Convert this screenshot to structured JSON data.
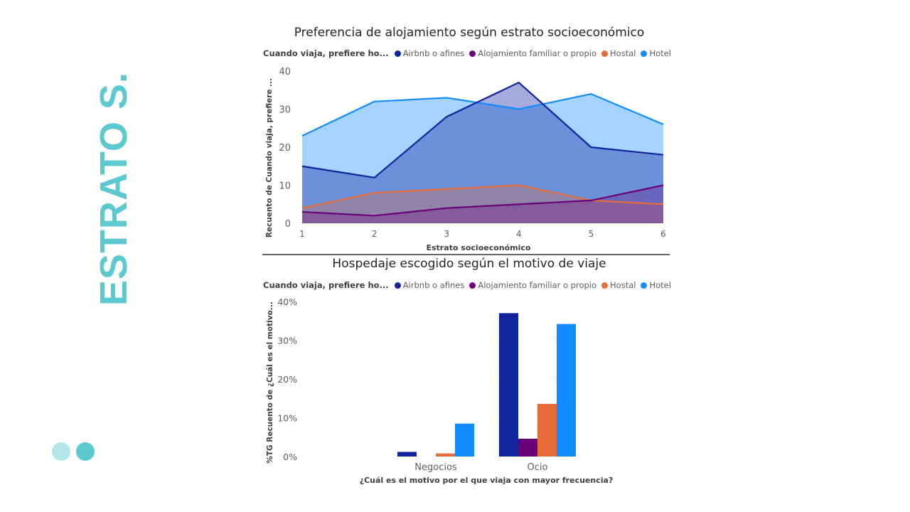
{
  "sidebar": {
    "title": "ESTRATO S.",
    "accent_color": "#5cc8cf",
    "dot_light_color": "#b3e6e9",
    "dot_dark_color": "#5cc8cf"
  },
  "legend": {
    "title": "Cuando viaja, prefiere ho...",
    "entries": [
      {
        "name": "Airbnb o afines",
        "color": "#12239e"
      },
      {
        "name": "Alojamiento familiar o propio",
        "color": "#6b007b"
      },
      {
        "name": "Hostal",
        "color": "#e66c37"
      },
      {
        "name": "Hotel",
        "color": "#118dff"
      }
    ]
  },
  "chart_data": [
    {
      "type": "area",
      "title": "Preferencia de alojamiento según estrato socioeconómico",
      "xlabel": "Estrato socioeconómico",
      "ylabel": "Recuento de Cuando viaja, prefiere ...",
      "x": [
        1,
        2,
        3,
        4,
        5,
        6
      ],
      "ylim": [
        0,
        40
      ],
      "yticks": [
        0,
        10,
        20,
        30,
        40
      ],
      "series": [
        {
          "name": "Airbnb o afines",
          "values": [
            15,
            12,
            28,
            37,
            20,
            18
          ]
        },
        {
          "name": "Alojamiento familiar o propio",
          "values": [
            3,
            2,
            4,
            5,
            6,
            10
          ]
        },
        {
          "name": "Hostal",
          "values": [
            4,
            8,
            9,
            10,
            6,
            5
          ]
        },
        {
          "name": "Hotel",
          "values": [
            23,
            32,
            33,
            30,
            34,
            26
          ]
        }
      ]
    },
    {
      "type": "bar",
      "title": "Hospedaje escogido según el motivo de viaje",
      "xlabel": "¿Cuál es el motivo por el que viaja con mayor frecuencia?",
      "ylabel": "%TG Recuento de ¿Cuál es el motivo...",
      "categories": [
        "Negocios",
        "Ocio"
      ],
      "ylim": [
        0,
        40
      ],
      "yticks": [
        "0%",
        "10%",
        "20%",
        "30%",
        "40%"
      ],
      "series": [
        {
          "name": "Airbnb o afines",
          "values": [
            1.2,
            37
          ]
        },
        {
          "name": "Alojamiento familiar o propio",
          "values": [
            0,
            4.6
          ]
        },
        {
          "name": "Hostal",
          "values": [
            0.8,
            13.6
          ]
        },
        {
          "name": "Hotel",
          "values": [
            8.5,
            34.2
          ]
        }
      ]
    }
  ]
}
